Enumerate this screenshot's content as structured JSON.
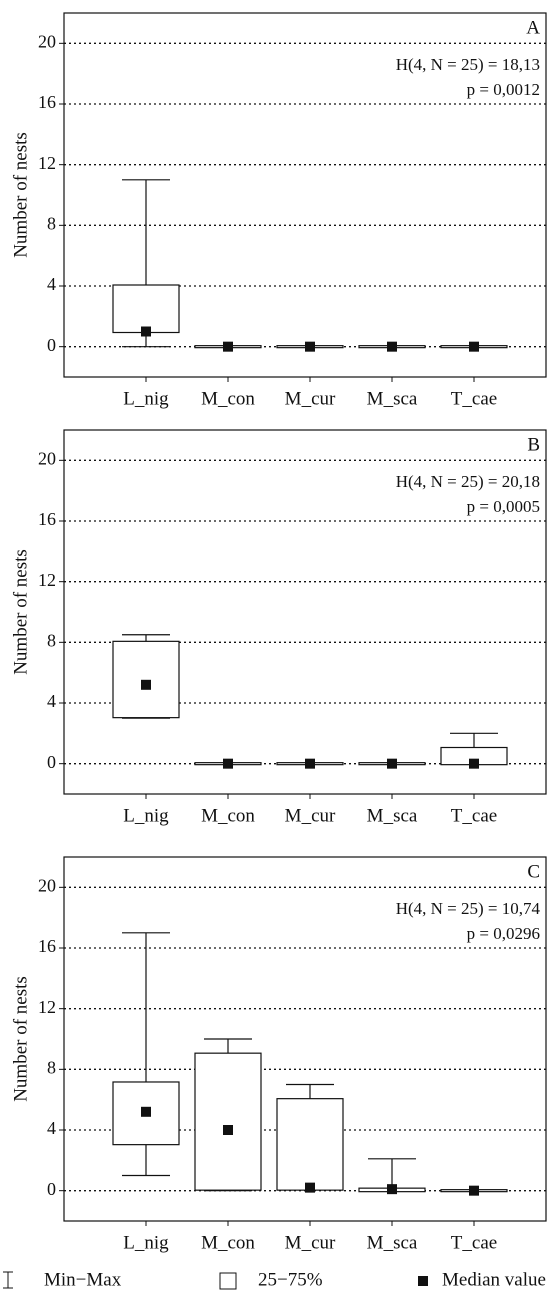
{
  "chart_data": [
    {
      "type": "box",
      "panel_label": "A",
      "stat": "H(4,  N = 25)  = 18,13",
      "p": "p  = 0,0012",
      "y_label": "Number  of nests",
      "categories": [
        "L_nig",
        "M_con",
        "M_cur",
        "M_sca",
        "T_cae"
      ],
      "boxes": [
        {
          "min": 0,
          "q1": 1,
          "median": 1,
          "q3": 4,
          "max": 11
        },
        {
          "min": 0,
          "q1": 0,
          "median": 0,
          "q3": 0,
          "max": 0
        },
        {
          "min": 0,
          "q1": 0,
          "median": 0,
          "q3": 0,
          "max": 0
        },
        {
          "min": 0,
          "q1": 0,
          "median": 0,
          "q3": 0,
          "max": 0
        },
        {
          "min": 0,
          "q1": 0,
          "median": 0,
          "q3": 0,
          "max": 0
        }
      ],
      "ylim": [
        -2,
        22
      ],
      "yticks": [
        0,
        4,
        8,
        12,
        16,
        20
      ],
      "grid": true
    },
    {
      "type": "box",
      "panel_label": "B",
      "stat": "H(4,  N = 25)  = 20,18",
      "p": "p  = 0,0005",
      "y_label": "Number  of nests",
      "categories": [
        "L_nig",
        "M_con",
        "M_cur",
        "M_sca",
        "T_cae"
      ],
      "boxes": [
        {
          "min": 3,
          "q1": 3.1,
          "median": 5.2,
          "q3": 8,
          "max": 8.5
        },
        {
          "min": 0,
          "q1": 0,
          "median": 0,
          "q3": 0,
          "max": 0
        },
        {
          "min": 0,
          "q1": 0,
          "median": 0,
          "q3": 0,
          "max": 0
        },
        {
          "min": 0,
          "q1": 0,
          "median": 0,
          "q3": 0,
          "max": 0
        },
        {
          "min": 0,
          "q1": 0,
          "median": 0,
          "q3": 1,
          "max": 2
        }
      ],
      "ylim": [
        -2,
        22
      ],
      "yticks": [
        0,
        4,
        8,
        12,
        16,
        20
      ],
      "grid": true
    },
    {
      "type": "box",
      "panel_label": "C",
      "stat": "H(4,  N = 25)  = 10,74",
      "p": "p  = 0,0296",
      "y_label": "Number  of nests",
      "categories": [
        "L_nig",
        "M_con",
        "M_cur",
        "M_sca",
        "T_cae"
      ],
      "boxes": [
        {
          "min": 1,
          "q1": 3.1,
          "median": 5.2,
          "q3": 7.1,
          "max": 17
        },
        {
          "min": 0,
          "q1": 0.1,
          "median": 4,
          "q3": 9,
          "max": 10
        },
        {
          "min": 0.1,
          "q1": 0.1,
          "median": 0.2,
          "q3": 6,
          "max": 7
        },
        {
          "min": 0,
          "q1": 0,
          "median": 0.1,
          "q3": 0.1,
          "max": 2.1
        },
        {
          "min": 0,
          "q1": 0,
          "median": 0,
          "q3": 0,
          "max": 0
        }
      ],
      "ylim": [
        -2,
        22
      ],
      "yticks": [
        0,
        4,
        8,
        12,
        16,
        20
      ],
      "grid": true
    }
  ],
  "legend": [
    "Min−Max",
    "25−75%",
    "Median value"
  ]
}
